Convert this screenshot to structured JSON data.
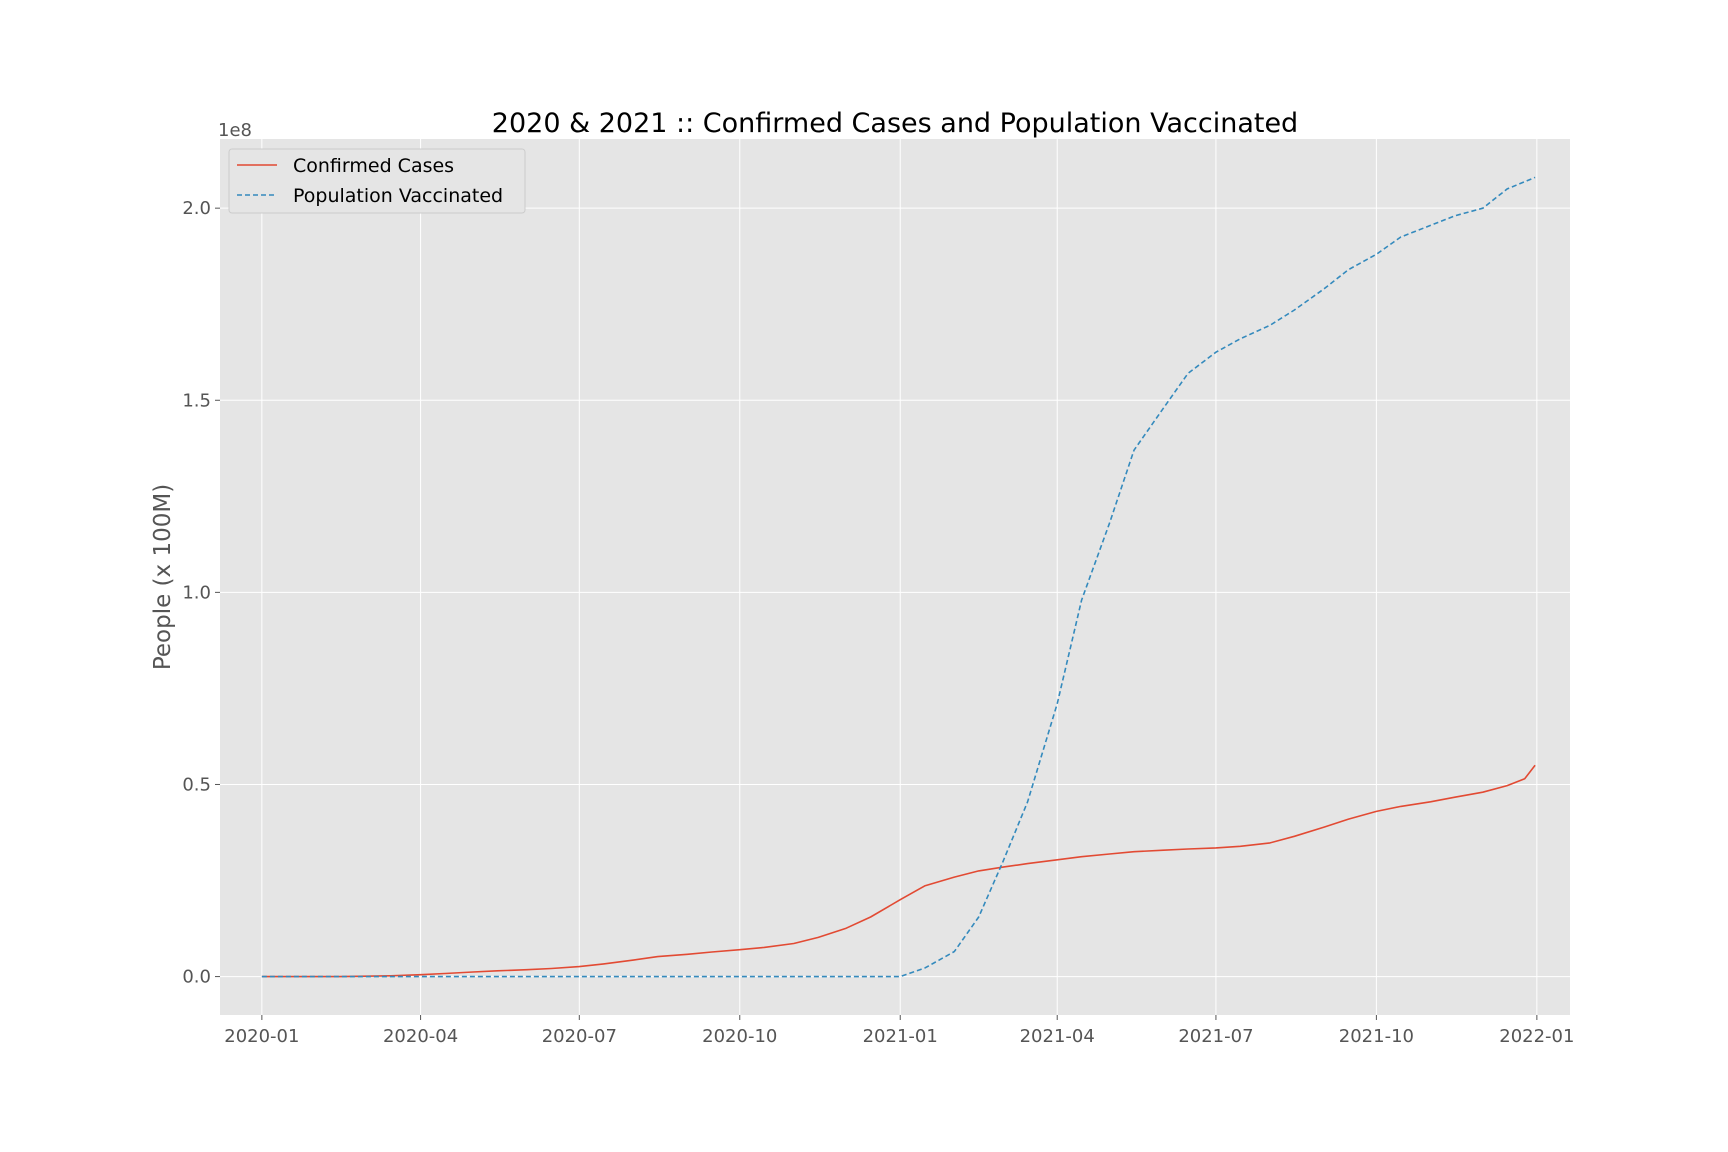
{
  "chart_data": {
    "type": "line",
    "title": "2020 & 2021 :: Confirmed Cases and Population Vaccinated",
    "xlabel": "",
    "ylabel": "People (x 100M)",
    "y_offset_label": "1e8",
    "xlim": [
      "2019-12-08",
      "2022-01-20"
    ],
    "ylim": [
      -0.1,
      2.18
    ],
    "x_ticks": [
      "2020-01",
      "2020-04",
      "2020-07",
      "2020-10",
      "2021-01",
      "2021-04",
      "2021-07",
      "2021-10",
      "2022-01"
    ],
    "y_ticks": [
      {
        "value": 0.0,
        "label": "0.0"
      },
      {
        "value": 0.5,
        "label": "0.5"
      },
      {
        "value": 1.0,
        "label": "1.0"
      },
      {
        "value": 1.5,
        "label": "1.5"
      },
      {
        "value": 2.0,
        "label": "2.0"
      }
    ],
    "grid": true,
    "legend_position": "top-left",
    "series": [
      {
        "name": "Confirmed Cases",
        "color": "#E24A33",
        "line_style": "solid",
        "x": [
          "2020-01-01",
          "2020-02-15",
          "2020-03-15",
          "2020-04-01",
          "2020-04-15",
          "2020-05-01",
          "2020-05-15",
          "2020-06-01",
          "2020-06-15",
          "2020-07-01",
          "2020-07-15",
          "2020-08-01",
          "2020-08-15",
          "2020-09-01",
          "2020-09-15",
          "2020-10-01",
          "2020-10-15",
          "2020-11-01",
          "2020-11-15",
          "2020-12-01",
          "2020-12-15",
          "2021-01-01",
          "2021-01-15",
          "2021-02-01",
          "2021-02-15",
          "2021-03-01",
          "2021-03-15",
          "2021-04-01",
          "2021-04-15",
          "2021-05-01",
          "2021-05-15",
          "2021-06-01",
          "2021-06-15",
          "2021-07-01",
          "2021-07-15",
          "2021-08-01",
          "2021-08-15",
          "2021-09-01",
          "2021-09-15",
          "2021-10-01",
          "2021-10-15",
          "2021-11-01",
          "2021-11-15",
          "2021-12-01",
          "2021-12-15",
          "2021-12-25",
          "2021-12-31"
        ],
        "values": [
          0.0,
          0.0,
          0.002,
          0.005,
          0.008,
          0.012,
          0.015,
          0.018,
          0.021,
          0.026,
          0.033,
          0.043,
          0.052,
          0.058,
          0.064,
          0.07,
          0.076,
          0.086,
          0.102,
          0.126,
          0.155,
          0.2,
          0.236,
          0.259,
          0.275,
          0.285,
          0.294,
          0.304,
          0.312,
          0.319,
          0.325,
          0.329,
          0.332,
          0.335,
          0.339,
          0.348,
          0.365,
          0.389,
          0.41,
          0.43,
          0.443,
          0.455,
          0.467,
          0.48,
          0.497,
          0.515,
          0.55
        ]
      },
      {
        "name": "Population Vaccinated",
        "color": "#348ABD",
        "line_style": "dashed",
        "x": [
          "2020-01-01",
          "2020-12-01",
          "2021-01-01",
          "2021-01-15",
          "2021-02-01",
          "2021-02-15",
          "2021-03-01",
          "2021-03-15",
          "2021-04-01",
          "2021-04-15",
          "2021-05-01",
          "2021-05-15",
          "2021-06-01",
          "2021-06-15",
          "2021-07-01",
          "2021-07-15",
          "2021-08-01",
          "2021-08-15",
          "2021-09-01",
          "2021-09-15",
          "2021-10-01",
          "2021-10-15",
          "2021-11-01",
          "2021-11-15",
          "2021-12-01",
          "2021-12-15",
          "2021-12-31"
        ],
        "values": [
          0.0,
          0.0,
          0.0,
          0.022,
          0.065,
          0.155,
          0.3,
          0.455,
          0.71,
          0.98,
          1.18,
          1.37,
          1.48,
          1.57,
          1.625,
          1.66,
          1.695,
          1.735,
          1.79,
          1.84,
          1.88,
          1.925,
          1.955,
          1.98,
          2.0,
          2.05,
          2.08
        ]
      }
    ]
  }
}
